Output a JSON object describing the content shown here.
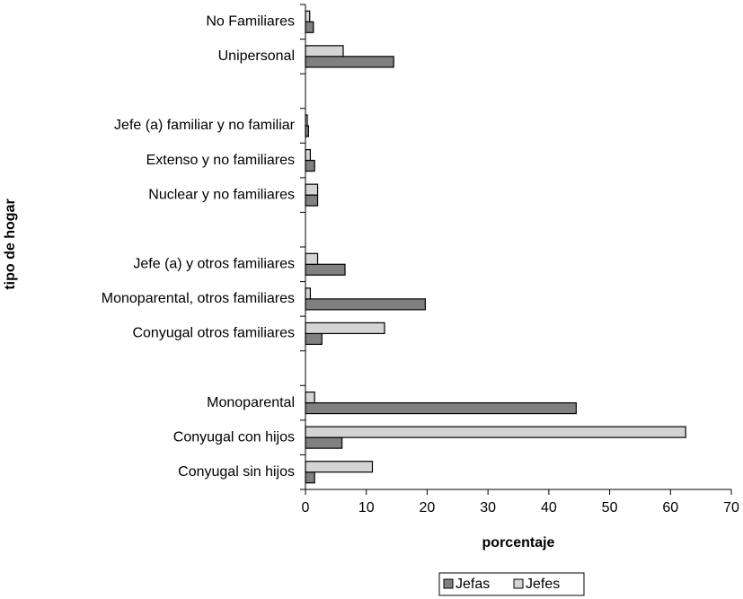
{
  "chart_data": {
    "type": "barh",
    "x_label": "porcentaje",
    "y_label": "tipo de hogar",
    "categories": [
      "Conyugal sin hijos",
      "Conyugal con hijos",
      "Monoparental",
      null,
      "Conyugal otros familiares",
      "Monoparental, otros familiares",
      "Jefe (a) y otros familiares",
      null,
      "Nuclear y no familiares",
      "Extenso y no familiares",
      "Jefe (a) familiar y no familiar",
      null,
      "Unipersonal",
      "No Familiares"
    ],
    "series": [
      {
        "name": "Jefas",
        "color": "#808080",
        "values": [
          1.5,
          6,
          44.5,
          null,
          2.7,
          19.7,
          6.5,
          null,
          2,
          1.5,
          0.5,
          null,
          14.5,
          1.3
        ]
      },
      {
        "name": "Jefes",
        "color": "#d4d4d4",
        "values": [
          11,
          62.5,
          1.5,
          null,
          13,
          0.8,
          2,
          null,
          2,
          0.8,
          0.3,
          null,
          6.2,
          0.7
        ]
      }
    ],
    "xlim": [
      0,
      70
    ],
    "xticks": [
      0,
      10,
      20,
      30,
      40,
      50,
      60,
      70
    ],
    "legend": "bottom"
  }
}
